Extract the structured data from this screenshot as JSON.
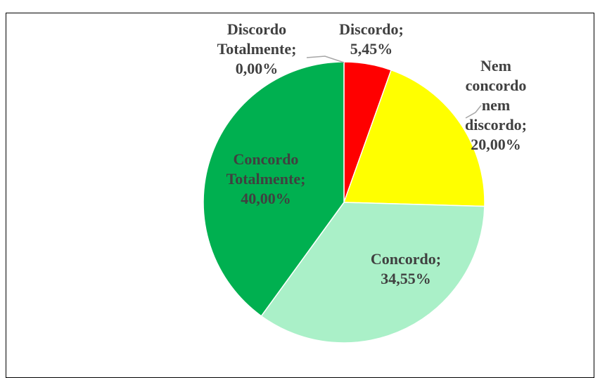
{
  "chart_data": {
    "type": "pie",
    "categories": [
      "Discordo Totalmente;",
      "Discordo;",
      "Nem concordo nem discordo;",
      "Concordo;",
      "Concordo Totalmente;"
    ],
    "values": [
      0,
      5.45,
      20,
      34.55,
      40
    ],
    "value_labels": [
      "0,00%",
      "5,45%",
      "20,00%",
      "34,55%",
      "40,00%"
    ],
    "colors": [
      "#4472c4",
      "#ff0000",
      "#ffff00",
      "#aaf0c8",
      "#00b050"
    ]
  }
}
